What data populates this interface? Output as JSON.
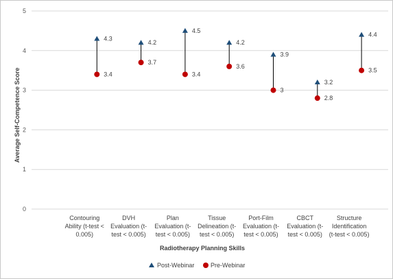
{
  "chart_data": {
    "type": "scatter",
    "title": "",
    "xlabel": "Radiotherapy Planning Skills",
    "ylabel": "Average Self-Competence Score",
    "ylim": [
      0,
      5
    ],
    "yticks": [
      0,
      1,
      2,
      3,
      4,
      5
    ],
    "grid": "horizontal",
    "legend_position": "bottom",
    "categories": [
      [
        "Contouring",
        "Ability (t-test <",
        "0.005)"
      ],
      [
        "DVH",
        "Evaluation (t-",
        "test < 0.005)"
      ],
      [
        "Plan",
        "Evaluation (t-",
        "test < 0.005)"
      ],
      [
        "Tissue",
        "Delineation (t-",
        "test < 0.005)"
      ],
      [
        "Port-Film",
        "Evaluation (t-",
        "test < 0.005)"
      ],
      [
        "CBCT",
        "Evaluation (t-",
        "test < 0.005)"
      ],
      [
        "Structure",
        "Identification",
        "(t-test < 0.005)"
      ]
    ],
    "series": [
      {
        "name": "Post-Webinar",
        "marker": "triangle",
        "color": "#1f4e79",
        "values": [
          4.3,
          4.2,
          4.5,
          4.2,
          3.9,
          3.2,
          4.4
        ],
        "labels": [
          "4.3",
          "4.2",
          "4.5",
          "4.2",
          "3.9",
          "3.2",
          "4.4"
        ]
      },
      {
        "name": "Pre-Webinar",
        "marker": "circle",
        "color": "#c00000",
        "values": [
          3.4,
          3.7,
          3.4,
          3.6,
          3.0,
          2.8,
          3.5
        ],
        "labels": [
          "3.4",
          "3.7",
          "3.4",
          "3.6",
          "3",
          "2.8",
          "3.5"
        ]
      }
    ]
  }
}
